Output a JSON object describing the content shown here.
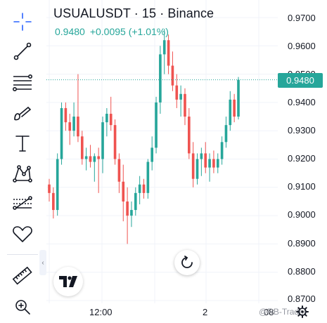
{
  "header": {
    "symbol_line": "USUALUSDT · 15 · Binance",
    "last_price": "0.9480",
    "change": "+0.0095 (+1.01%)"
  },
  "price_axis": {
    "labels": [
      "0.9700",
      "0.9600",
      "0.9500",
      "0.9400",
      "0.9300",
      "0.9200",
      "0.9100",
      "0.9000",
      "0.8900",
      "0.8800",
      "0.8700"
    ],
    "current_price_label": "0.9480"
  },
  "time_axis": {
    "labels": [
      "12:00",
      "2",
      "08"
    ]
  },
  "watermark": "@RB-Trader",
  "colors": {
    "up": "#26a69a",
    "down": "#ef5350",
    "accent": "#2962ff",
    "grid": "#f0f3fa",
    "price_line": "#26a69a"
  },
  "toolbar": {
    "tools": [
      "crosshair-icon",
      "trend-line-icon",
      "fib-retracement-icon",
      "brush-icon",
      "text-icon",
      "pattern-icon",
      "forecast-icon",
      "favorites-heart-icon",
      "ruler-icon",
      "zoom-in-icon"
    ]
  },
  "chart_data": {
    "type": "candlestick",
    "symbol": "USUALUSDT",
    "interval": "15",
    "exchange": "Binance",
    "ylim": [
      0.87,
      0.975
    ],
    "last_price": 0.948,
    "candles": [
      [
        0.911,
        0.913,
        0.905,
        0.908
      ],
      [
        0.908,
        0.91,
        0.899,
        0.902
      ],
      [
        0.902,
        0.922,
        0.9,
        0.92
      ],
      [
        0.92,
        0.94,
        0.918,
        0.938
      ],
      [
        0.938,
        0.94,
        0.93,
        0.933
      ],
      [
        0.933,
        0.936,
        0.925,
        0.93
      ],
      [
        0.93,
        0.94,
        0.928,
        0.935
      ],
      [
        0.935,
        0.95,
        0.926,
        0.928
      ],
      [
        0.928,
        0.93,
        0.918,
        0.92
      ],
      [
        0.92,
        0.924,
        0.916,
        0.921
      ],
      [
        0.921,
        0.925,
        0.917,
        0.919
      ],
      [
        0.919,
        0.922,
        0.912,
        0.921
      ],
      [
        0.921,
        0.924,
        0.908,
        0.92
      ],
      [
        0.92,
        0.935,
        0.915,
        0.933
      ],
      [
        0.933,
        0.938,
        0.928,
        0.936
      ],
      [
        0.936,
        0.942,
        0.93,
        0.932
      ],
      [
        0.932,
        0.934,
        0.918,
        0.92
      ],
      [
        0.92,
        0.922,
        0.908,
        0.912
      ],
      [
        0.912,
        0.918,
        0.898,
        0.905
      ],
      [
        0.905,
        0.91,
        0.89,
        0.9
      ],
      [
        0.9,
        0.905,
        0.896,
        0.902
      ],
      [
        0.902,
        0.91,
        0.9,
        0.908
      ],
      [
        0.908,
        0.914,
        0.904,
        0.911
      ],
      [
        0.911,
        0.913,
        0.906,
        0.908
      ],
      [
        0.908,
        0.92,
        0.906,
        0.919
      ],
      [
        0.919,
        0.928,
        0.916,
        0.924
      ],
      [
        0.924,
        0.942,
        0.922,
        0.94
      ],
      [
        0.94,
        0.96,
        0.936,
        0.957
      ],
      [
        0.957,
        0.966,
        0.95,
        0.962
      ],
      [
        0.962,
        0.964,
        0.95,
        0.953
      ],
      [
        0.953,
        0.958,
        0.944,
        0.946
      ],
      [
        0.946,
        0.95,
        0.938,
        0.941
      ],
      [
        0.941,
        0.946,
        0.935,
        0.943
      ],
      [
        0.943,
        0.945,
        0.932,
        0.935
      ],
      [
        0.935,
        0.938,
        0.92,
        0.922
      ],
      [
        0.922,
        0.926,
        0.91,
        0.913
      ],
      [
        0.913,
        0.922,
        0.911,
        0.92
      ],
      [
        0.92,
        0.924,
        0.914,
        0.922
      ],
      [
        0.922,
        0.926,
        0.915,
        0.917
      ],
      [
        0.917,
        0.922,
        0.912,
        0.92
      ],
      [
        0.92,
        0.923,
        0.915,
        0.917
      ],
      [
        0.917,
        0.922,
        0.915,
        0.92
      ],
      [
        0.92,
        0.928,
        0.918,
        0.926
      ],
      [
        0.926,
        0.935,
        0.924,
        0.932
      ],
      [
        0.932,
        0.944,
        0.93,
        0.941
      ],
      [
        0.941,
        0.943,
        0.933,
        0.935
      ],
      [
        0.935,
        0.949,
        0.934,
        0.948
      ]
    ]
  }
}
